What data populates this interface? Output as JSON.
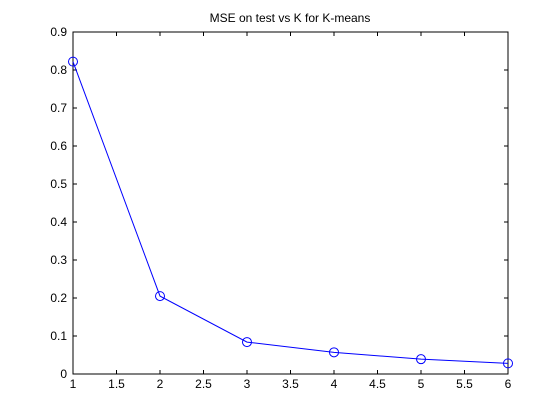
{
  "chart_data": {
    "type": "line",
    "title": "MSE on test vs K for K-means",
    "xlabel": "",
    "ylabel": "",
    "xlim": [
      1,
      6
    ],
    "ylim": [
      0,
      0.9
    ],
    "xticks": [
      "1",
      "1.5",
      "2",
      "2.5",
      "3",
      "3.5",
      "4",
      "4.5",
      "5",
      "5.5",
      "6"
    ],
    "yticks": [
      "0",
      "0.1",
      "0.2",
      "0.3",
      "0.4",
      "0.5",
      "0.6",
      "0.7",
      "0.8",
      "0.9"
    ],
    "grid": false,
    "series": [
      {
        "color": "#0000ff",
        "marker": "circle",
        "x": [
          1,
          2,
          3,
          4,
          5,
          6
        ],
        "y": [
          0.822,
          0.205,
          0.084,
          0.057,
          0.039,
          0.028
        ]
      }
    ]
  }
}
